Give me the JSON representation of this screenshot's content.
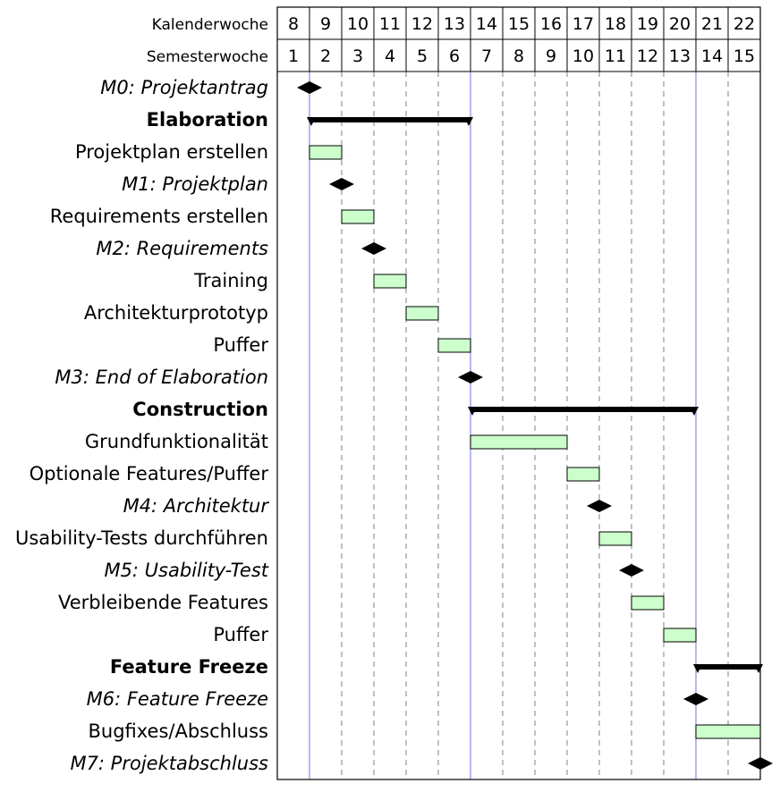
{
  "header": {
    "row1_label": "Kalenderwoche",
    "row2_label": "Semesterwoche",
    "calendar_weeks": [
      "8",
      "9",
      "10",
      "11",
      "12",
      "13",
      "14",
      "15",
      "16",
      "17",
      "18",
      "19",
      "20",
      "21",
      "22"
    ],
    "semester_weeks": [
      "1",
      "2",
      "3",
      "4",
      "5",
      "6",
      "7",
      "8",
      "9",
      "10",
      "11",
      "12",
      "13",
      "14",
      "15"
    ]
  },
  "phase_boundaries": [
    1,
    6,
    13
  ],
  "colors": {
    "bar_fill": "#ccffcc",
    "bar_stroke": "#000000",
    "phase_line": "#8a8ae6",
    "grid_dash": "#808080"
  },
  "rows": [
    {
      "label": "M0: Projektantrag",
      "kind": "milestone",
      "at": 1
    },
    {
      "label": "Elaboration",
      "kind": "group",
      "start": 1,
      "end": 6
    },
    {
      "label": "Projektplan erstellen",
      "kind": "bar",
      "start": 1,
      "end": 2
    },
    {
      "label": "M1: Projektplan",
      "kind": "milestone",
      "at": 2
    },
    {
      "label": "Requirements erstellen",
      "kind": "bar",
      "start": 2,
      "end": 3
    },
    {
      "label": "M2: Requirements",
      "kind": "milestone",
      "at": 3
    },
    {
      "label": "Training",
      "kind": "bar",
      "start": 3,
      "end": 4
    },
    {
      "label": "Architekturprototyp",
      "kind": "bar",
      "start": 4,
      "end": 5
    },
    {
      "label": "Puffer",
      "kind": "bar",
      "start": 5,
      "end": 6
    },
    {
      "label": "M3: End of Elaboration",
      "kind": "milestone",
      "at": 6
    },
    {
      "label": "Construction",
      "kind": "group",
      "start": 6,
      "end": 13
    },
    {
      "label": "Grundfunktionalität",
      "kind": "bar",
      "start": 6,
      "end": 9
    },
    {
      "label": "Optionale Features/Puffer",
      "kind": "bar",
      "start": 9,
      "end": 10
    },
    {
      "label": "M4: Architektur",
      "kind": "milestone",
      "at": 10
    },
    {
      "label": "Usability-Tests durchführen",
      "kind": "bar",
      "start": 10,
      "end": 11
    },
    {
      "label": "M5: Usability-Test",
      "kind": "milestone",
      "at": 11
    },
    {
      "label": "Verbleibende Features",
      "kind": "bar",
      "start": 11,
      "end": 12
    },
    {
      "label": "Puffer",
      "kind": "bar",
      "start": 12,
      "end": 13
    },
    {
      "label": "Feature Freeze",
      "kind": "group",
      "start": 13,
      "end": 15
    },
    {
      "label": "M6: Feature Freeze",
      "kind": "milestone",
      "at": 13
    },
    {
      "label": "Bugfixes/Abschluss",
      "kind": "bar",
      "start": 13,
      "end": 15
    },
    {
      "label": "M7: Projektabschluss",
      "kind": "milestone",
      "at": 15
    }
  ]
}
